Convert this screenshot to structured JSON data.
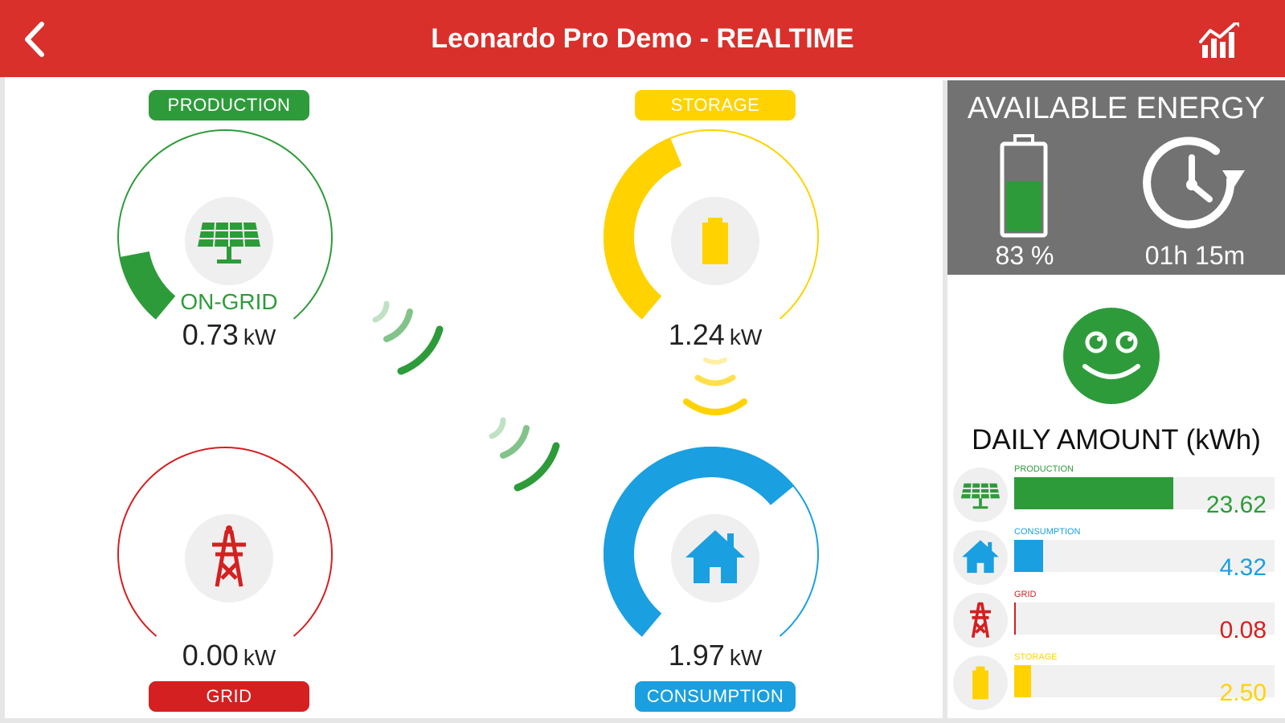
{
  "header": {
    "title": "Leonardo Pro Demo - REALTIME",
    "back_icon": "chevron-left-icon",
    "chart_icon": "chart-icon"
  },
  "colors": {
    "header": "#d9302c",
    "production": "#2e9b3a",
    "storage": "#ffd200",
    "grid": "#d42020",
    "consumption": "#1a9fe0"
  },
  "gauges": {
    "production": {
      "label": "PRODUCTION",
      "status": "ON-GRID",
      "value": "0.73",
      "unit": "kW",
      "level": 0.14,
      "icon": "solar-panel-icon"
    },
    "storage": {
      "label": "STORAGE",
      "value": "1.24",
      "unit": "kW",
      "level": 0.42,
      "icon": "battery-icon"
    },
    "grid": {
      "label": "GRID",
      "value": "0.00",
      "unit": "kW",
      "level": 0.0,
      "icon": "power-tower-icon"
    },
    "consumption": {
      "label": "CONSUMPTION",
      "value": "1.97",
      "unit": "kW",
      "level": 0.68,
      "icon": "house-icon"
    }
  },
  "available_energy": {
    "title": "AVAILABLE ENERGY",
    "battery_percent": "83 %",
    "battery_level": 0.6,
    "time_remaining": "01h 15m"
  },
  "daily": {
    "title": "DAILY AMOUNT (kWh)",
    "items": [
      {
        "label": "PRODUCTION",
        "value": "23.62",
        "fraction": 0.61,
        "color": "#2e9b3a",
        "icon": "solar-panel-icon"
      },
      {
        "label": "CONSUMPTION",
        "value": "4.32",
        "fraction": 0.11,
        "color": "#1a9fe0",
        "icon": "house-icon"
      },
      {
        "label": "GRID",
        "value": "0.08",
        "fraction": 0.005,
        "color": "#d42020",
        "icon": "power-tower-icon"
      },
      {
        "label": "STORAGE",
        "value": "2.50",
        "fraction": 0.065,
        "color": "#ffd200",
        "icon": "battery-icon"
      }
    ]
  }
}
